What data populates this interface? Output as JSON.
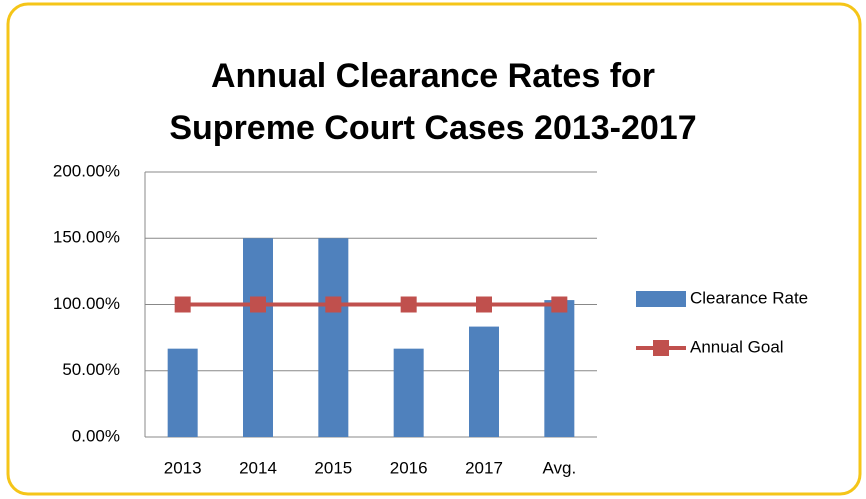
{
  "chart_data": {
    "type": "bar",
    "title": [
      "Annual Clearance Rates for",
      "Supreme Court Cases 2013-2017"
    ],
    "categories": [
      "2013",
      "2014",
      "2015",
      "2016",
      "2017",
      "Avg."
    ],
    "series": [
      {
        "name": "Clearance Rate",
        "type": "bar",
        "color": "#4f81bd",
        "values": [
          66.67,
          150,
          150,
          66.67,
          83.33,
          103.33
        ]
      },
      {
        "name": "Annual Goal",
        "type": "line",
        "color": "#c0504d",
        "values": [
          100,
          100,
          100,
          100,
          100,
          100
        ]
      }
    ],
    "ylim": [
      0,
      200
    ],
    "yticks": [
      {
        "value": 0,
        "label": "0.00%"
      },
      {
        "value": 50,
        "label": "50.00%"
      },
      {
        "value": 100,
        "label": "100.00%"
      },
      {
        "value": 150,
        "label": "150.00%"
      },
      {
        "value": 200,
        "label": "200.00%"
      }
    ],
    "grid": true,
    "legend": "right"
  }
}
